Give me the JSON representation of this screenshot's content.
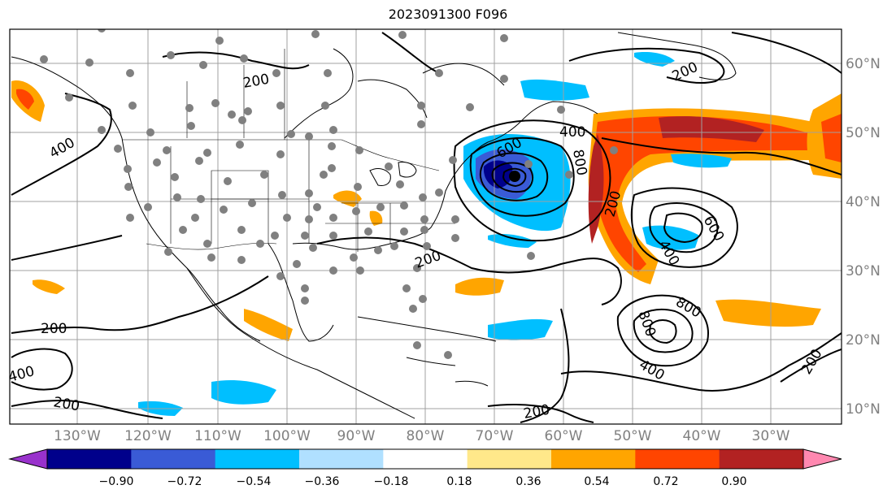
{
  "map": {
    "title": "2023091300 F096",
    "lon_labels": [
      "130°W",
      "120°W",
      "110°W",
      "100°W",
      "90°W",
      "80°W",
      "70°W",
      "60°W",
      "50°W",
      "40°W",
      "30°W"
    ],
    "lat_labels": [
      "60°N",
      "50°N",
      "40°N",
      "30°N",
      "20°N",
      "10°N"
    ],
    "contour_labels": [
      "200",
      "200",
      "200",
      "200",
      "200",
      "200",
      "400",
      "400",
      "400",
      "400",
      "400",
      "600",
      "600",
      "800",
      "800",
      "800",
      "200",
      "200"
    ],
    "colorbar": {
      "tick_labels": [
        "−0.90",
        "−0.72",
        "−0.54",
        "−0.36",
        "−0.18",
        "0.18",
        "0.36",
        "0.54",
        "0.72",
        "0.90"
      ],
      "colors": [
        "#9932cc",
        "#00008b",
        "#3a5bd6",
        "#00bfff",
        "#b0e0ff",
        "#ffffff",
        "#ffe88a",
        "#ffa500",
        "#ff4500",
        "#b22222",
        "#ff88b0"
      ]
    }
  }
}
